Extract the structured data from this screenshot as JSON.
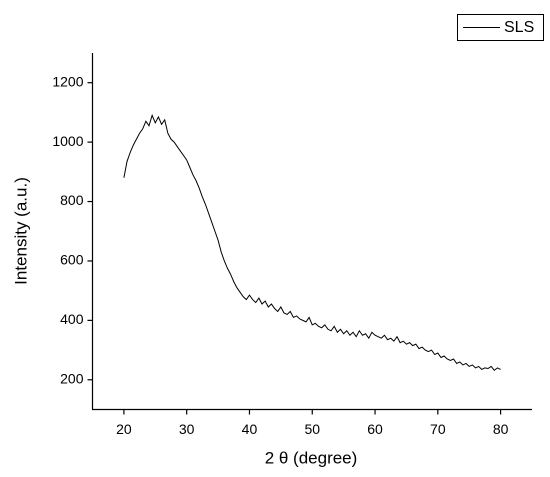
{
  "chart_data": {
    "type": "line",
    "x_label": "2 θ (degree)",
    "y_label": "Intensity (a.u.)",
    "x": [
      20,
      20.5,
      21,
      21.5,
      22,
      22.5,
      23,
      23.5,
      24,
      24.5,
      25,
      25.5,
      26,
      26.5,
      27,
      27.5,
      28,
      28.5,
      29,
      29.5,
      30,
      30.5,
      31,
      31.5,
      32,
      32.5,
      33,
      33.5,
      34,
      34.5,
      35,
      35.5,
      36,
      36.5,
      37,
      37.5,
      38,
      38.5,
      39,
      39.5,
      40,
      40.5,
      41,
      41.5,
      42,
      42.5,
      43,
      43.5,
      44,
      44.5,
      45,
      45.5,
      46,
      46.5,
      47,
      47.5,
      48,
      48.5,
      49,
      49.5,
      50,
      50.5,
      51,
      51.5,
      52,
      52.5,
      53,
      53.5,
      54,
      54.5,
      55,
      55.5,
      56,
      56.5,
      57,
      57.5,
      58,
      58.5,
      59,
      59.5,
      60,
      60.5,
      61,
      61.5,
      62,
      62.5,
      63,
      63.5,
      64,
      64.5,
      65,
      65.5,
      66,
      66.5,
      67,
      67.5,
      68,
      68.5,
      69,
      69.5,
      70,
      70.5,
      71,
      71.5,
      72,
      72.5,
      73,
      73.5,
      74,
      74.5,
      75,
      75.5,
      76,
      76.5,
      77,
      77.5,
      78,
      78.5,
      79,
      79.5,
      80
    ],
    "series": [
      {
        "name": "SLS",
        "color": "#000000",
        "values": [
          880,
          935,
          965,
          990,
          1010,
          1030,
          1045,
          1070,
          1055,
          1090,
          1065,
          1085,
          1060,
          1075,
          1030,
          1010,
          1000,
          985,
          970,
          955,
          940,
          915,
          890,
          870,
          845,
          815,
          790,
          760,
          730,
          700,
          670,
          630,
          600,
          575,
          555,
          530,
          510,
          495,
          480,
          470,
          485,
          470,
          460,
          475,
          455,
          465,
          445,
          455,
          440,
          430,
          445,
          425,
          420,
          430,
          410,
          415,
          405,
          400,
          395,
          410,
          385,
          390,
          380,
          375,
          385,
          370,
          365,
          380,
          360,
          370,
          355,
          365,
          350,
          360,
          345,
          365,
          350,
          355,
          340,
          360,
          350,
          345,
          340,
          350,
          335,
          340,
          330,
          345,
          325,
          330,
          320,
          325,
          315,
          320,
          305,
          310,
          300,
          295,
          300,
          285,
          290,
          275,
          280,
          270,
          265,
          270,
          255,
          260,
          250,
          255,
          245,
          250,
          240,
          245,
          235,
          240,
          238,
          245,
          232,
          240,
          235
        ]
      }
    ],
    "xlim": [
      15,
      85
    ],
    "xticks": [
      20,
      30,
      40,
      50,
      60,
      70,
      80
    ],
    "ylim": [
      100,
      1300
    ],
    "yticks": [
      200,
      400,
      600,
      800,
      1000,
      1200
    ],
    "legend": "top-right"
  }
}
